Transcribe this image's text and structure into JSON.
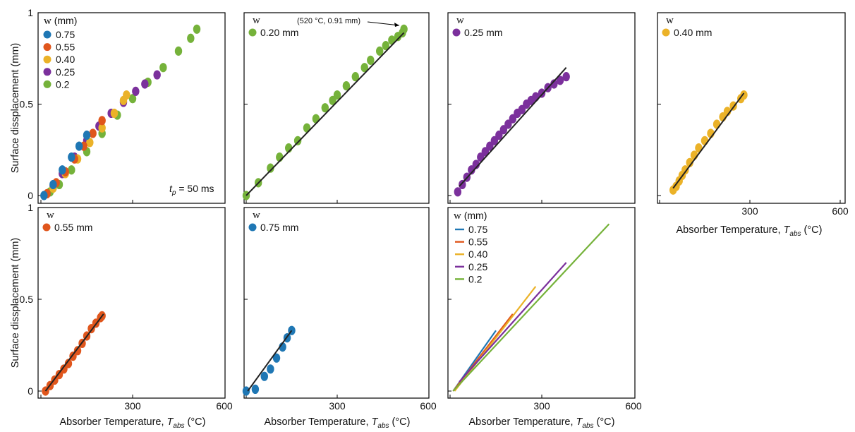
{
  "figure": {
    "y_axis_label": "Surface dissplacement (mm)",
    "x_axis_label_prefix": "Absorber Temperature, ",
    "x_axis_label_symbol": "T",
    "x_axis_label_subscript": "abs",
    "x_axis_label_unit": " (°C)",
    "pulse_label_symbol": "t",
    "pulse_label_subscript": "p",
    "pulse_label_value": " = 50 ms",
    "peak_annotation": "(520 °C, 0.91 mm)",
    "legend_title_w": "w",
    "legend_title_unit": " (mm)"
  },
  "colors": {
    "0.75": "#1f77b4",
    "0.55": "#e0561c",
    "0.40": "#ebb228",
    "0.25": "#7b309c",
    "0.2": "#75b23a",
    "fit": "#222222"
  },
  "chart_data": [
    {
      "id": "all-widths",
      "type": "scatter",
      "xlim": [
        0,
        600
      ],
      "ylim": [
        0,
        1
      ],
      "x_ticks": [
        0,
        300,
        600
      ],
      "y_ticks": [
        0,
        0.5,
        1
      ],
      "x_tick_labels": [],
      "y_tick_labels": [
        "0",
        "0.5",
        "1"
      ],
      "legend": [
        "0.75",
        "0.55",
        "0.40",
        "0.25",
        "0.2"
      ],
      "series": [
        {
          "name": "0.2",
          "color_key": "0.2",
          "x": [
            30,
            60,
            100,
            150,
            200,
            250,
            300,
            350,
            400,
            450,
            490,
            510
          ],
          "y": [
            0.02,
            0.06,
            0.14,
            0.24,
            0.34,
            0.44,
            0.53,
            0.62,
            0.7,
            0.79,
            0.86,
            0.91
          ]
        },
        {
          "name": "0.25",
          "color_key": "0.25",
          "x": [
            40,
            70,
            110,
            150,
            190,
            230,
            270,
            310,
            340,
            380
          ],
          "y": [
            0.05,
            0.12,
            0.21,
            0.3,
            0.38,
            0.45,
            0.51,
            0.57,
            0.61,
            0.66
          ]
        },
        {
          "name": "0.40",
          "color_key": "0.40",
          "x": [
            40,
            80,
            120,
            160,
            200,
            240,
            270,
            280
          ],
          "y": [
            0.04,
            0.12,
            0.2,
            0.29,
            0.37,
            0.45,
            0.52,
            0.55
          ]
        },
        {
          "name": "0.55",
          "color_key": "0.55",
          "x": [
            20,
            50,
            80,
            110,
            140,
            170,
            200
          ],
          "y": [
            0.01,
            0.07,
            0.13,
            0.2,
            0.27,
            0.34,
            0.41
          ]
        },
        {
          "name": "0.75",
          "color_key": "0.75",
          "x": [
            10,
            40,
            70,
            100,
            125,
            150
          ],
          "y": [
            0.0,
            0.06,
            0.14,
            0.21,
            0.27,
            0.33
          ]
        }
      ]
    },
    {
      "id": "w-0.20",
      "type": "scatter",
      "xlim": [
        0,
        600
      ],
      "ylim": [
        0,
        1
      ],
      "x_ticks": [
        0,
        300,
        600
      ],
      "y_ticks": [
        0,
        0.5,
        1
      ],
      "x_tick_labels": [],
      "y_tick_labels": [],
      "legend_label": "0.20 mm",
      "series": [
        {
          "name": "0.20 mm",
          "color_key": "0.2",
          "x": [
            0,
            40,
            80,
            110,
            140,
            170,
            200,
            230,
            260,
            285,
            300,
            330,
            360,
            390,
            410,
            440,
            460,
            480,
            500,
            515,
            520
          ],
          "y": [
            0.0,
            0.07,
            0.15,
            0.21,
            0.26,
            0.3,
            0.37,
            0.42,
            0.48,
            0.52,
            0.55,
            0.6,
            0.65,
            0.7,
            0.74,
            0.79,
            0.82,
            0.85,
            0.87,
            0.89,
            0.91
          ]
        }
      ],
      "fit": {
        "x": [
          0,
          520
        ],
        "y": [
          0.0,
          0.89
        ]
      }
    },
    {
      "id": "w-0.25",
      "type": "scatter",
      "xlim": [
        0,
        600
      ],
      "ylim": [
        0,
        1
      ],
      "x_ticks": [
        0,
        300,
        600
      ],
      "y_ticks": [
        0,
        0.5,
        1
      ],
      "x_tick_labels": [],
      "y_tick_labels": [],
      "legend_label": "0.25 mm",
      "series": [
        {
          "name": "0.25 mm",
          "color_key": "0.25",
          "x": [
            25,
            40,
            55,
            70,
            85,
            100,
            115,
            130,
            145,
            160,
            175,
            190,
            205,
            220,
            235,
            250,
            265,
            280,
            300,
            320,
            340,
            360,
            380
          ],
          "y": [
            0.02,
            0.06,
            0.1,
            0.14,
            0.17,
            0.21,
            0.24,
            0.27,
            0.3,
            0.33,
            0.36,
            0.39,
            0.42,
            0.45,
            0.47,
            0.5,
            0.52,
            0.54,
            0.56,
            0.59,
            0.61,
            0.63,
            0.65
          ]
        }
      ],
      "fit": {
        "x": [
          30,
          380
        ],
        "y": [
          0.05,
          0.7
        ]
      }
    },
    {
      "id": "w-0.40",
      "type": "scatter",
      "xlim": [
        0,
        600
      ],
      "ylim": [
        0,
        1
      ],
      "x_ticks": [
        0,
        300,
        600
      ],
      "y_ticks": [
        0,
        0.5,
        1
      ],
      "x_tick_labels": [
        "300",
        "600"
      ],
      "y_tick_labels": [],
      "legend_label": "0.40 mm",
      "series": [
        {
          "name": "0.40 mm",
          "color_key": "0.40",
          "x": [
            45,
            55,
            65,
            75,
            85,
            100,
            115,
            130,
            150,
            170,
            190,
            210,
            225,
            245,
            270,
            280
          ],
          "y": [
            0.03,
            0.05,
            0.08,
            0.11,
            0.14,
            0.18,
            0.22,
            0.26,
            0.3,
            0.34,
            0.39,
            0.43,
            0.46,
            0.49,
            0.53,
            0.55
          ]
        }
      ],
      "fit": {
        "x": [
          45,
          280
        ],
        "y": [
          0.04,
          0.56
        ]
      }
    },
    {
      "id": "w-0.55",
      "type": "scatter",
      "xlim": [
        0,
        600
      ],
      "ylim": [
        0,
        1
      ],
      "x_ticks": [
        0,
        300,
        600
      ],
      "y_ticks": [
        0,
        0.5,
        1
      ],
      "x_tick_labels": [
        "300",
        "600"
      ],
      "y_tick_labels": [
        "0",
        "0.5",
        "1"
      ],
      "legend_label": "0.55 mm",
      "series": [
        {
          "name": "0.55 mm",
          "color_key": "0.55",
          "x": [
            15,
            30,
            45,
            60,
            75,
            90,
            105,
            120,
            135,
            150,
            165,
            180,
            195,
            200
          ],
          "y": [
            0.0,
            0.03,
            0.06,
            0.09,
            0.12,
            0.15,
            0.19,
            0.22,
            0.26,
            0.3,
            0.34,
            0.37,
            0.4,
            0.41
          ]
        }
      ],
      "fit": {
        "x": [
          15,
          205
        ],
        "y": [
          0.0,
          0.42
        ]
      }
    },
    {
      "id": "w-0.75",
      "type": "scatter",
      "xlim": [
        0,
        600
      ],
      "ylim": [
        0,
        1
      ],
      "x_ticks": [
        0,
        300,
        600
      ],
      "y_ticks": [
        0,
        0.5,
        1
      ],
      "x_tick_labels": [
        "300",
        "600"
      ],
      "y_tick_labels": [],
      "legend_label": "0.75 mm",
      "series": [
        {
          "name": "0.75 mm",
          "color_key": "0.75",
          "x": [
            0,
            30,
            60,
            80,
            100,
            120,
            135,
            150
          ],
          "y": [
            0.0,
            0.01,
            0.08,
            0.12,
            0.18,
            0.24,
            0.29,
            0.33
          ]
        }
      ],
      "fit": {
        "x": [
          5,
          150
        ],
        "y": [
          0.0,
          0.33
        ]
      }
    },
    {
      "id": "fits-all",
      "type": "line",
      "xlim": [
        0,
        600
      ],
      "ylim": [
        0,
        1
      ],
      "x_ticks": [
        0,
        300,
        600
      ],
      "y_ticks": [
        0,
        0.5,
        1
      ],
      "x_tick_labels": [
        "300",
        "600"
      ],
      "y_tick_labels": [],
      "legend": [
        "0.75",
        "0.55",
        "0.40",
        "0.25",
        "0.2"
      ],
      "series": [
        {
          "name": "0.75",
          "color_key": "0.75",
          "x": [
            10,
            150
          ],
          "y": [
            0.0,
            0.33
          ]
        },
        {
          "name": "0.55",
          "color_key": "0.55",
          "x": [
            10,
            205
          ],
          "y": [
            0.0,
            0.42
          ]
        },
        {
          "name": "0.40",
          "color_key": "0.40",
          "x": [
            15,
            280
          ],
          "y": [
            0.0,
            0.57
          ]
        },
        {
          "name": "0.25",
          "color_key": "0.25",
          "x": [
            30,
            380
          ],
          "y": [
            0.05,
            0.7
          ]
        },
        {
          "name": "0.2",
          "color_key": "0.2",
          "x": [
            10,
            520
          ],
          "y": [
            0.0,
            0.91
          ]
        }
      ]
    }
  ]
}
